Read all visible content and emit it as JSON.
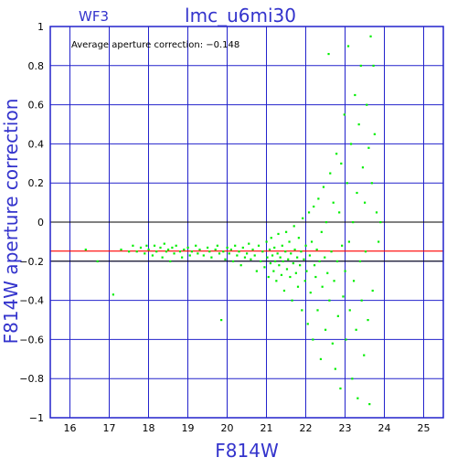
{
  "chart_data": {
    "type": "scatter",
    "title": "lmc_u6mi30",
    "corner_label": "WF3",
    "annotation": "Average aperture correction: −0.148",
    "xlabel": "F814W",
    "ylabel": "F814W aperture correction",
    "xlim": [
      15.5,
      25.5
    ],
    "ylim": [
      -1,
      1
    ],
    "xticks": [
      16,
      17,
      18,
      19,
      20,
      21,
      22,
      23,
      24,
      25
    ],
    "yticks": [
      -1,
      -0.8,
      -0.6,
      -0.4,
      -0.2,
      0,
      0.2,
      0.4,
      0.6,
      0.8,
      1
    ],
    "ytick_labels": [
      "−1",
      "−0.8",
      "−0.6",
      "−0.4",
      "−0.2",
      "0",
      "0.2",
      "0.4",
      "0.6",
      "0.8",
      "1"
    ],
    "grid": true,
    "average_line": -0.148,
    "colors": {
      "axes": "#2222cc",
      "points": "#00ee00",
      "average_line": "#ff0000",
      "zero_line": "#000000"
    },
    "points": [
      [
        16.4,
        -0.14
      ],
      [
        16.7,
        -0.2
      ],
      [
        17.1,
        -0.37
      ],
      [
        17.3,
        -0.14
      ],
      [
        17.5,
        -0.15
      ],
      [
        17.6,
        -0.12
      ],
      [
        17.7,
        -0.15
      ],
      [
        17.8,
        -0.13
      ],
      [
        17.9,
        -0.16
      ],
      [
        17.95,
        -0.12
      ],
      [
        18.0,
        -0.14
      ],
      [
        18.1,
        -0.17
      ],
      [
        18.15,
        -0.12
      ],
      [
        18.2,
        -0.15
      ],
      [
        18.3,
        -0.13
      ],
      [
        18.35,
        -0.18
      ],
      [
        18.4,
        -0.11
      ],
      [
        18.45,
        -0.15
      ],
      [
        18.5,
        -0.14
      ],
      [
        18.55,
        -0.2
      ],
      [
        18.6,
        -0.13
      ],
      [
        18.65,
        -0.16
      ],
      [
        18.7,
        -0.12
      ],
      [
        18.8,
        -0.15
      ],
      [
        18.85,
        -0.18
      ],
      [
        18.9,
        -0.14
      ],
      [
        19.0,
        -0.13
      ],
      [
        19.05,
        -0.17
      ],
      [
        19.1,
        -0.15
      ],
      [
        19.2,
        -0.12
      ],
      [
        19.25,
        -0.16
      ],
      [
        19.3,
        -0.14
      ],
      [
        19.4,
        -0.17
      ],
      [
        19.5,
        -0.13
      ],
      [
        19.55,
        -0.15
      ],
      [
        19.6,
        -0.18
      ],
      [
        19.7,
        -0.14
      ],
      [
        19.75,
        -0.12
      ],
      [
        19.8,
        -0.16
      ],
      [
        19.85,
        -0.5
      ],
      [
        19.9,
        -0.15
      ],
      [
        19.95,
        -0.19
      ],
      [
        20.0,
        -0.13
      ],
      [
        20.05,
        -0.16
      ],
      [
        20.1,
        -0.14
      ],
      [
        20.15,
        -0.2
      ],
      [
        20.2,
        -0.12
      ],
      [
        20.25,
        -0.17
      ],
      [
        20.3,
        -0.15
      ],
      [
        20.35,
        -0.22
      ],
      [
        20.4,
        -0.13
      ],
      [
        20.45,
        -0.18
      ],
      [
        20.5,
        -0.16
      ],
      [
        20.55,
        -0.11
      ],
      [
        20.6,
        -0.19
      ],
      [
        20.65,
        -0.14
      ],
      [
        20.7,
        -0.17
      ],
      [
        20.75,
        -0.25
      ],
      [
        20.8,
        -0.12
      ],
      [
        20.85,
        -0.2
      ],
      [
        20.9,
        -0.15
      ],
      [
        20.95,
        -0.23
      ],
      [
        21.0,
        -0.1
      ],
      [
        21.02,
        -0.18
      ],
      [
        21.05,
        -0.28
      ],
      [
        21.08,
        -0.14
      ],
      [
        21.1,
        -0.21
      ],
      [
        21.12,
        -0.08
      ],
      [
        21.15,
        -0.17
      ],
      [
        21.18,
        -0.25
      ],
      [
        21.2,
        -0.13
      ],
      [
        21.22,
        -0.2
      ],
      [
        21.25,
        -0.3
      ],
      [
        21.28,
        -0.16
      ],
      [
        21.3,
        -0.06
      ],
      [
        21.32,
        -0.22
      ],
      [
        21.35,
        -0.18
      ],
      [
        21.38,
        -0.27
      ],
      [
        21.4,
        -0.12
      ],
      [
        21.42,
        -0.2
      ],
      [
        21.45,
        -0.35
      ],
      [
        21.48,
        -0.15
      ],
      [
        21.5,
        -0.05
      ],
      [
        21.52,
        -0.24
      ],
      [
        21.55,
        -0.19
      ],
      [
        21.58,
        -0.1
      ],
      [
        21.6,
        -0.28
      ],
      [
        21.62,
        -0.16
      ],
      [
        21.65,
        -0.4
      ],
      [
        21.68,
        -0.21
      ],
      [
        21.7,
        -0.02
      ],
      [
        21.72,
        -0.14
      ],
      [
        21.75,
        -0.26
      ],
      [
        21.78,
        -0.18
      ],
      [
        21.8,
        -0.33
      ],
      [
        21.82,
        -0.08
      ],
      [
        21.85,
        -0.22
      ],
      [
        21.88,
        -0.15
      ],
      [
        21.9,
        -0.45
      ],
      [
        21.92,
        0.02
      ],
      [
        21.95,
        -0.19
      ],
      [
        21.98,
        -0.3
      ],
      [
        22.0,
        -0.12
      ],
      [
        22.02,
        -0.25
      ],
      [
        22.05,
        -0.52
      ],
      [
        22.08,
        0.05
      ],
      [
        22.1,
        -0.17
      ],
      [
        22.12,
        -0.36
      ],
      [
        22.15,
        -0.1
      ],
      [
        22.18,
        -0.6
      ],
      [
        22.2,
        0.08
      ],
      [
        22.22,
        -0.22
      ],
      [
        22.25,
        -0.28
      ],
      [
        22.28,
        -0.14
      ],
      [
        22.3,
        -0.45
      ],
      [
        22.32,
        0.12
      ],
      [
        22.35,
        -0.2
      ],
      [
        22.38,
        -0.7
      ],
      [
        22.4,
        -0.05
      ],
      [
        22.42,
        -0.33
      ],
      [
        22.45,
        0.18
      ],
      [
        22.48,
        -0.18
      ],
      [
        22.5,
        -0.55
      ],
      [
        22.52,
        0.0
      ],
      [
        22.55,
        -0.26
      ],
      [
        22.58,
        0.86
      ],
      [
        22.6,
        -0.4
      ],
      [
        22.62,
        0.25
      ],
      [
        22.65,
        -0.15
      ],
      [
        22.68,
        -0.62
      ],
      [
        22.7,
        0.1
      ],
      [
        22.72,
        -0.3
      ],
      [
        22.75,
        -0.75
      ],
      [
        22.78,
        0.35
      ],
      [
        22.8,
        -0.2
      ],
      [
        22.82,
        -0.48
      ],
      [
        22.85,
        0.05
      ],
      [
        22.88,
        -0.85
      ],
      [
        22.9,
        0.3
      ],
      [
        22.92,
        -0.12
      ],
      [
        22.95,
        -0.38
      ],
      [
        22.98,
        0.55
      ],
      [
        23.0,
        -0.25
      ],
      [
        23.02,
        -0.6
      ],
      [
        23.05,
        0.2
      ],
      [
        23.08,
        0.9
      ],
      [
        23.1,
        -0.1
      ],
      [
        23.12,
        -0.45
      ],
      [
        23.15,
        0.4
      ],
      [
        23.18,
        -0.8
      ],
      [
        23.2,
        0.0
      ],
      [
        23.22,
        -0.3
      ],
      [
        23.25,
        0.65
      ],
      [
        23.28,
        -0.55
      ],
      [
        23.3,
        0.15
      ],
      [
        23.32,
        -0.9
      ],
      [
        23.35,
        0.5
      ],
      [
        23.38,
        -0.2
      ],
      [
        23.4,
        0.8
      ],
      [
        23.42,
        -0.4
      ],
      [
        23.45,
        0.28
      ],
      [
        23.48,
        -0.68
      ],
      [
        23.5,
        0.1
      ],
      [
        23.52,
        -0.15
      ],
      [
        23.55,
        0.6
      ],
      [
        23.58,
        -0.5
      ],
      [
        23.6,
        0.38
      ],
      [
        23.62,
        -0.93
      ],
      [
        23.65,
        0.95
      ],
      [
        23.68,
        0.2
      ],
      [
        23.7,
        -0.35
      ],
      [
        23.72,
        0.8
      ],
      [
        23.75,
        0.45
      ],
      [
        23.8,
        0.05
      ],
      [
        23.85,
        -0.1
      ],
      [
        23.9,
        0.0
      ]
    ]
  }
}
